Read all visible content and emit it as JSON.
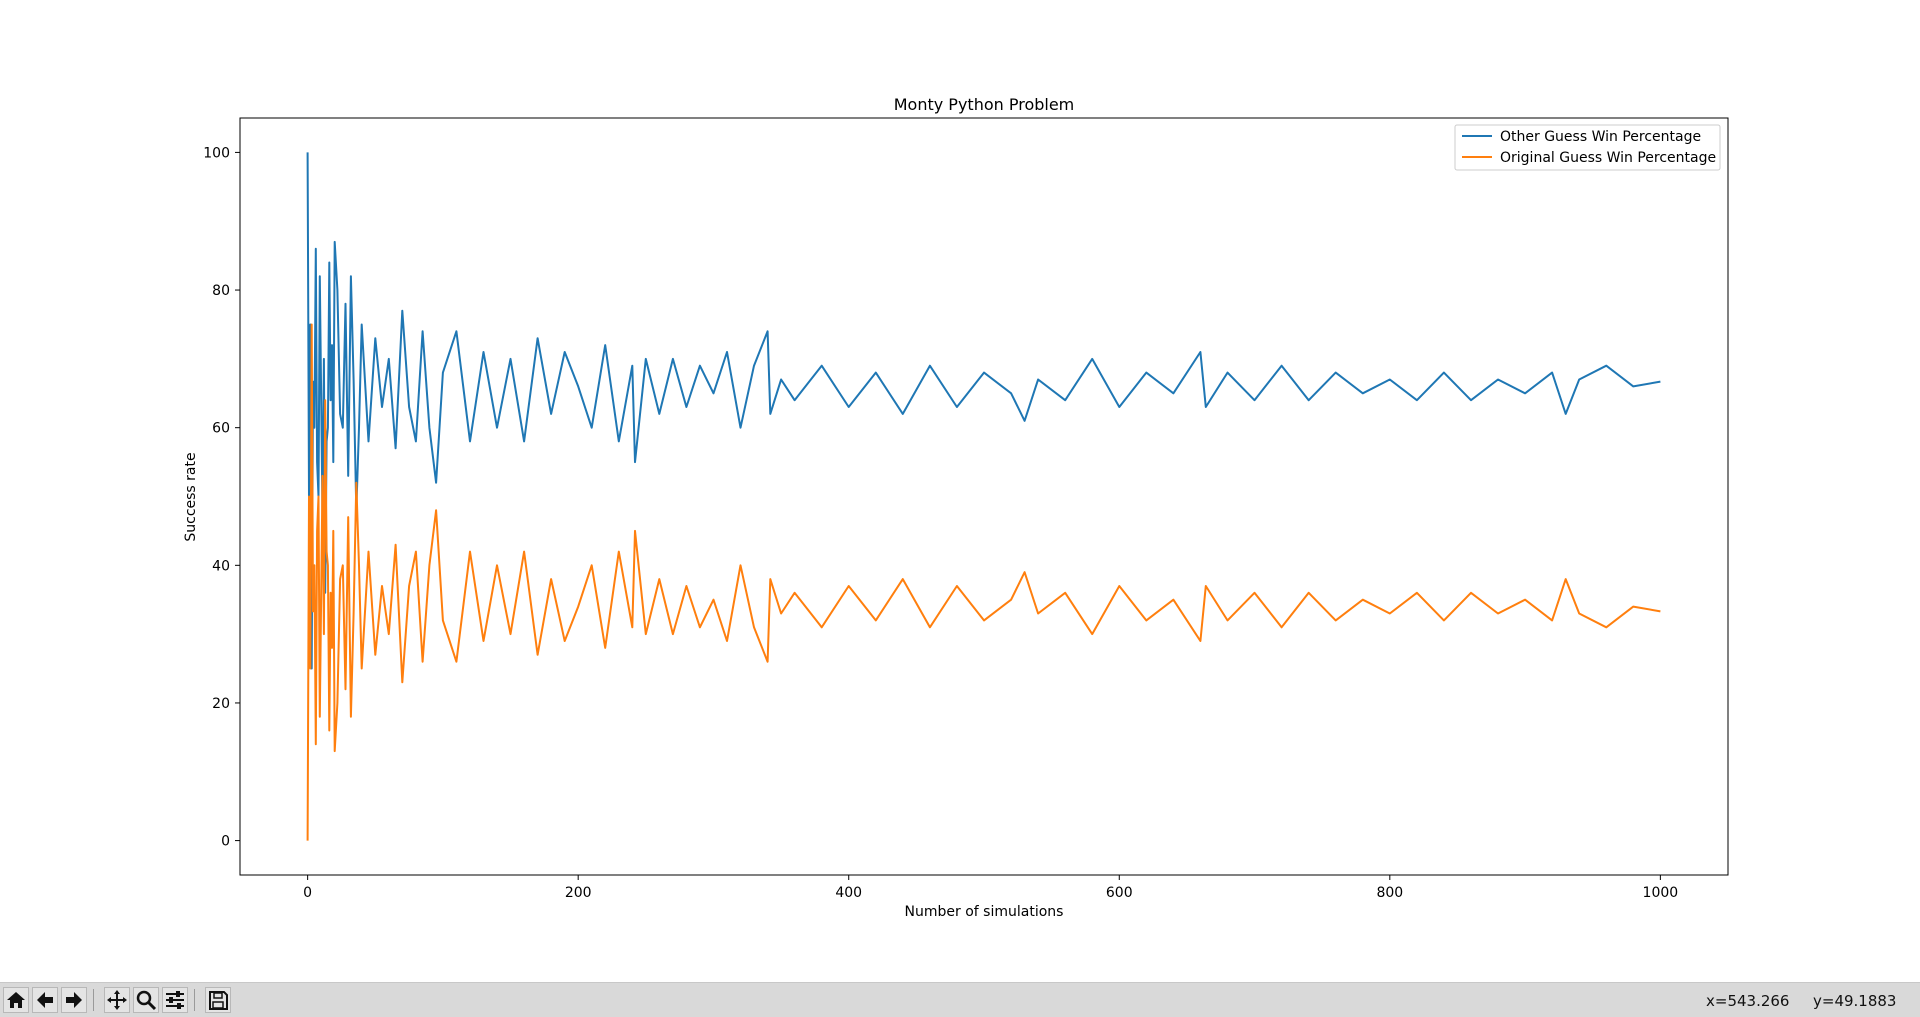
{
  "window": {
    "toolbar": {
      "buttons": [
        {
          "name": "home-button",
          "icon": "home-icon"
        },
        {
          "name": "back-button",
          "icon": "arrow-left-icon"
        },
        {
          "name": "forward-button",
          "icon": "arrow-right-icon"
        },
        {
          "name": "pan-button",
          "icon": "move-icon"
        },
        {
          "name": "zoom-button",
          "icon": "magnifier-icon"
        },
        {
          "name": "configure-subplots-button",
          "icon": "sliders-icon"
        },
        {
          "name": "save-button",
          "icon": "floppy-disk-icon"
        }
      ],
      "coord_x": "x=543.266",
      "coord_y": "y=49.1883"
    }
  },
  "chart_data": {
    "type": "line",
    "title": "Monty Python Problem",
    "xlabel": "Number of simulations",
    "ylabel": "Success rate",
    "xlim": [
      -50,
      1050
    ],
    "ylim": [
      -5,
      105
    ],
    "xticks": [
      0,
      200,
      400,
      600,
      800,
      1000
    ],
    "yticks": [
      0,
      20,
      40,
      60,
      80,
      100
    ],
    "grid": false,
    "legend_position": "upper right",
    "series": [
      {
        "name": "Other Guess Win Percentage",
        "color": "#1f77b4",
        "x": [
          0,
          1,
          2,
          3,
          4,
          5,
          6,
          7,
          8,
          9,
          10,
          11,
          12,
          13,
          14,
          15,
          16,
          17,
          18,
          19,
          20,
          22,
          24,
          26,
          28,
          30,
          32,
          34,
          36,
          38,
          40,
          45,
          50,
          55,
          60,
          65,
          70,
          75,
          80,
          85,
          90,
          95,
          100,
          110,
          120,
          130,
          140,
          150,
          160,
          170,
          180,
          190,
          200,
          210,
          220,
          230,
          240,
          242,
          250,
          260,
          270,
          280,
          290,
          300,
          310,
          320,
          330,
          340,
          342,
          350,
          360,
          380,
          400,
          420,
          440,
          460,
          480,
          500,
          520,
          530,
          540,
          560,
          580,
          600,
          620,
          640,
          660,
          664,
          680,
          700,
          720,
          740,
          760,
          780,
          800,
          820,
          840,
          860,
          880,
          900,
          920,
          930,
          940,
          960,
          980,
          1000
        ],
        "values": [
          100,
          50,
          75,
          25,
          66.7,
          60,
          86,
          55,
          50,
          82,
          64,
          47,
          70,
          36,
          58,
          60,
          84,
          64,
          72,
          55,
          87,
          80,
          62,
          60,
          78,
          53,
          82,
          67,
          48,
          60,
          75,
          58,
          73,
          63,
          70,
          57,
          77,
          63,
          58,
          74,
          60,
          52,
          68,
          74,
          58,
          71,
          60,
          70,
          58,
          73,
          62,
          71,
          66,
          60,
          72,
          58,
          69,
          55,
          70,
          62,
          70,
          63,
          69,
          65,
          71,
          60,
          69,
          74,
          62,
          67,
          64,
          69,
          63,
          68,
          62,
          69,
          63,
          68,
          65,
          61,
          67,
          64,
          70,
          63,
          68,
          65,
          71,
          63,
          68,
          64,
          69,
          64,
          68,
          65,
          67,
          64,
          68,
          64,
          67,
          65,
          68,
          62,
          67,
          69,
          66,
          66.7
        ]
      },
      {
        "name": "Original Guess Win Percentage",
        "color": "#ff7f0e",
        "x": [
          0,
          1,
          2,
          3,
          4,
          5,
          6,
          7,
          8,
          9,
          10,
          11,
          12,
          13,
          14,
          15,
          16,
          17,
          18,
          19,
          20,
          22,
          24,
          26,
          28,
          30,
          32,
          34,
          36,
          38,
          40,
          45,
          50,
          55,
          60,
          65,
          70,
          75,
          80,
          85,
          90,
          95,
          100,
          110,
          120,
          130,
          140,
          150,
          160,
          170,
          180,
          190,
          200,
          210,
          220,
          230,
          240,
          242,
          250,
          260,
          270,
          280,
          290,
          300,
          310,
          320,
          330,
          340,
          342,
          350,
          360,
          380,
          400,
          420,
          440,
          460,
          480,
          500,
          520,
          530,
          540,
          560,
          580,
          600,
          620,
          640,
          660,
          664,
          680,
          700,
          720,
          740,
          760,
          780,
          800,
          820,
          840,
          860,
          880,
          900,
          920,
          930,
          940,
          960,
          980,
          1000
        ],
        "values": [
          0,
          50,
          25,
          75,
          33.3,
          40,
          14,
          45,
          50,
          18,
          36,
          53,
          30,
          64,
          42,
          40,
          16,
          36,
          28,
          45,
          13,
          20,
          38,
          40,
          22,
          47,
          18,
          33,
          52,
          40,
          25,
          42,
          27,
          37,
          30,
          43,
          23,
          37,
          42,
          26,
          40,
          48,
          32,
          26,
          42,
          29,
          40,
          30,
          42,
          27,
          38,
          29,
          34,
          40,
          28,
          42,
          31,
          45,
          30,
          38,
          30,
          37,
          31,
          35,
          29,
          40,
          31,
          26,
          38,
          33,
          36,
          31,
          37,
          32,
          38,
          31,
          37,
          32,
          35,
          39,
          33,
          36,
          30,
          37,
          32,
          35,
          29,
          37,
          32,
          36,
          31,
          36,
          32,
          35,
          33,
          36,
          32,
          36,
          33,
          35,
          32,
          38,
          33,
          31,
          34,
          33.3
        ]
      }
    ]
  }
}
